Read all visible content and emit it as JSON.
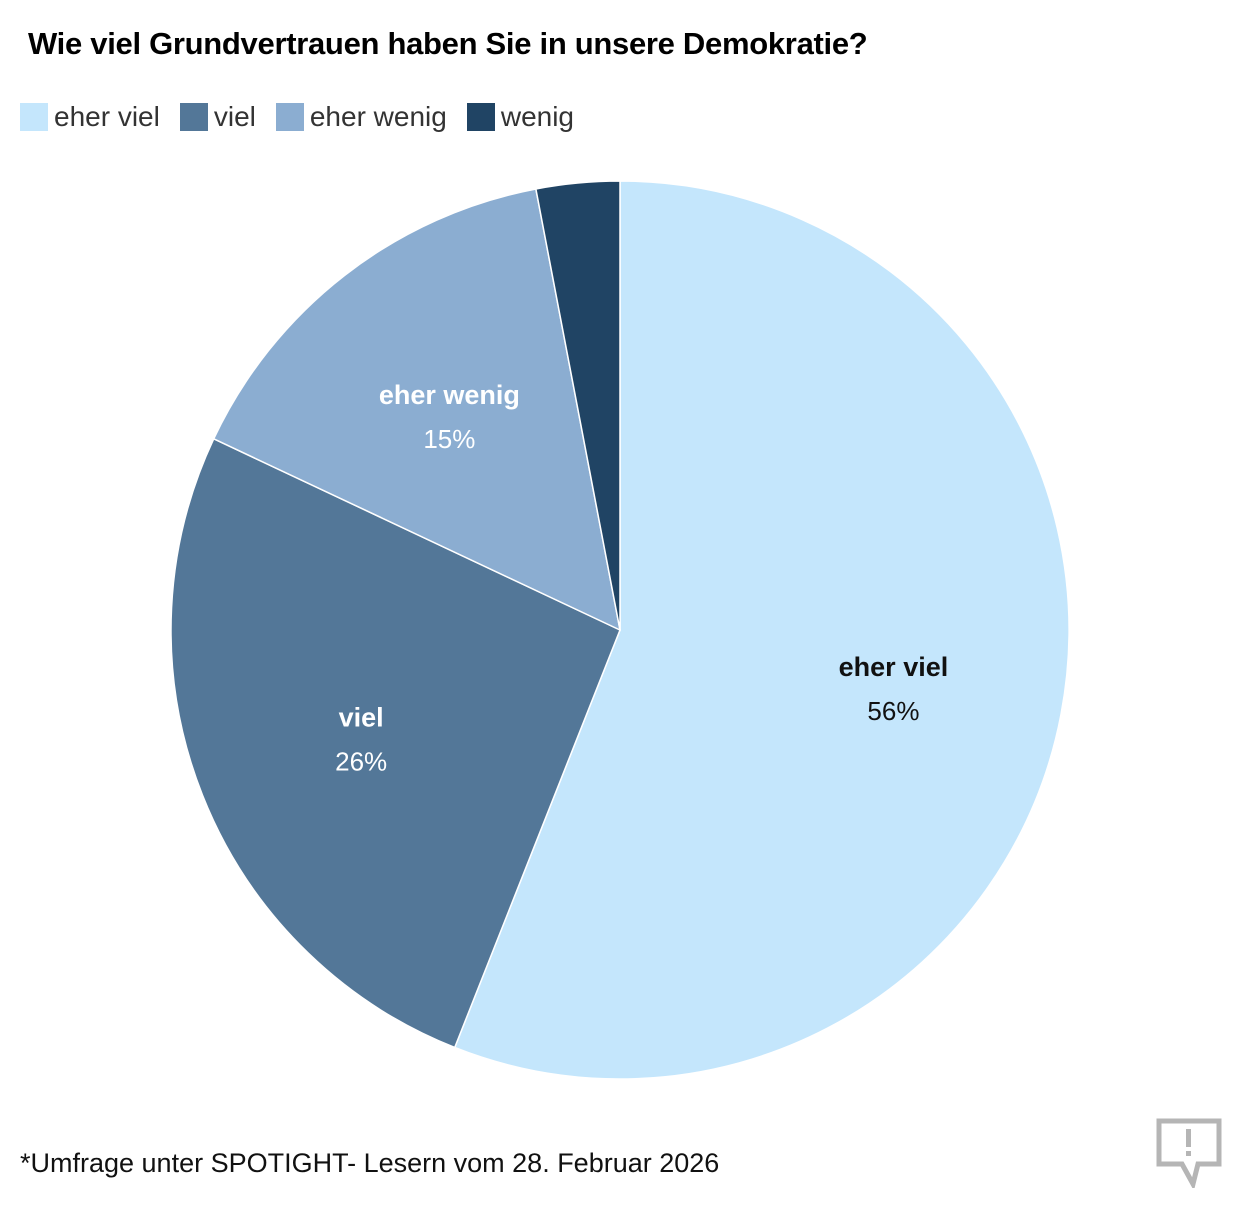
{
  "chart_data": {
    "type": "pie",
    "title": "Wie viel Grundvertrauen haben Sie in unsere Demokratie?",
    "start": "top",
    "direction": "clockwise",
    "series": [
      {
        "name": "eher viel",
        "value": 56,
        "label": "56%",
        "color": "#c4e6fc",
        "text_color": "#111111"
      },
      {
        "name": "viel",
        "value": 26,
        "label": "26%",
        "color": "#537798",
        "text_color": "#ffffff"
      },
      {
        "name": "eher wenig",
        "value": 15,
        "label": "15%",
        "color": "#8badd1",
        "text_color": "#ffffff"
      },
      {
        "name": "wenig",
        "value": 3,
        "label": "",
        "color": "#204464",
        "text_color": "#ffffff"
      }
    ],
    "legend": [
      {
        "name": "eher viel",
        "color": "#c4e6fc"
      },
      {
        "name": "viel",
        "color": "#537798"
      },
      {
        "name": "eher wenig",
        "color": "#8badd1"
      },
      {
        "name": "wenig",
        "color": "#204464"
      }
    ],
    "legend_position": "top-left"
  },
  "footer": {
    "note": "*Umfrage unter SPOTIGHT- Lesern vom 28. Februar 2026",
    "icon": "report-icon"
  }
}
